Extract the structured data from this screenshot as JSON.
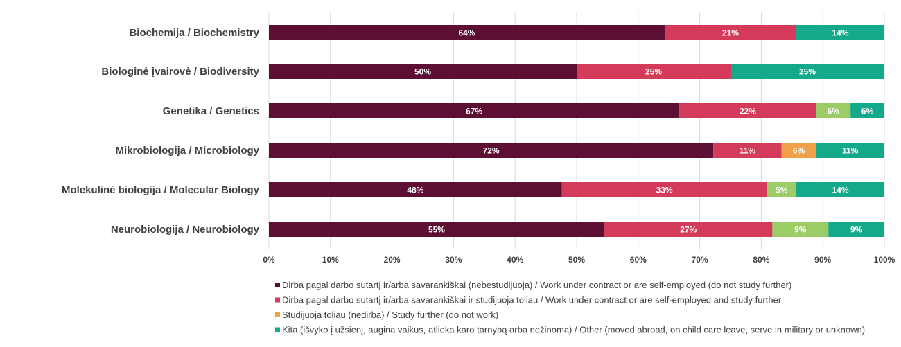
{
  "chart_data": {
    "type": "bar",
    "orientation": "horizontal",
    "stacked": true,
    "categories": [
      "Biochemija / Biochemistry",
      "Biologinė įvairovė / Biodiversity",
      "Genetika / Genetics",
      "Mikrobiologija / Microbiology",
      "Molekulinė biologija / Molecular Biology",
      "Neurobiologija / Neurobiology"
    ],
    "series": [
      {
        "name": "Dirba pagal darbo sutartį ir/arba savarankiškai (nebestudijuoja) / Work under contract or are self-employed (do not study further)",
        "color": "#5c0f32",
        "values": [
          64.3,
          50,
          66.7,
          72.2,
          47.6,
          54.5
        ],
        "labels": [
          "64%",
          "50%",
          "67%",
          "72%",
          "48%",
          "55%"
        ]
      },
      {
        "name": "Dirba pagal darbo sutartį ir/arba savarankiškai  ir studijuoja toliau / Work under contract or are self-employed and study further",
        "color": "#d43b5a",
        "values": [
          21.4,
          25,
          22.2,
          11.1,
          33.3,
          27.3
        ],
        "labels": [
          "21%",
          "25%",
          "22%",
          "11%",
          "33%",
          "27%"
        ]
      },
      {
        "name": "Studijuoja toliau (nedirba) / Study further (do not work)",
        "color": "#f0a04b",
        "values": [
          0,
          0,
          0,
          5.6,
          0,
          0
        ],
        "labels": [
          "",
          "",
          "",
          "6%",
          "",
          ""
        ]
      },
      {
        "name": "",
        "color": "#9ccc65",
        "values": [
          0,
          0,
          5.6,
          0,
          4.8,
          9.1
        ],
        "labels": [
          "",
          "",
          "6%",
          "",
          "5%",
          "9%"
        ]
      },
      {
        "name": "Kita (išvyko į užsienį, augina vaikus, atlieka karo tarnybą arba nežinoma) / Other (moved abroad, on child care leave, serve in military or unknown)",
        "color": "#14a98a",
        "values": [
          14.3,
          25,
          5.5,
          11.1,
          14.3,
          9.1
        ],
        "labels": [
          "14%",
          "25%",
          "6%",
          "11%",
          "14%",
          "9%"
        ]
      }
    ],
    "x_ticks": [
      "0%",
      "10%",
      "20%",
      "30%",
      "40%",
      "50%",
      "60%",
      "70%",
      "80%",
      "90%",
      "100%"
    ],
    "xlim": [
      0,
      100
    ],
    "grid": true,
    "legend_position": "bottom-right",
    "title": "",
    "xlabel": "",
    "ylabel": ""
  }
}
